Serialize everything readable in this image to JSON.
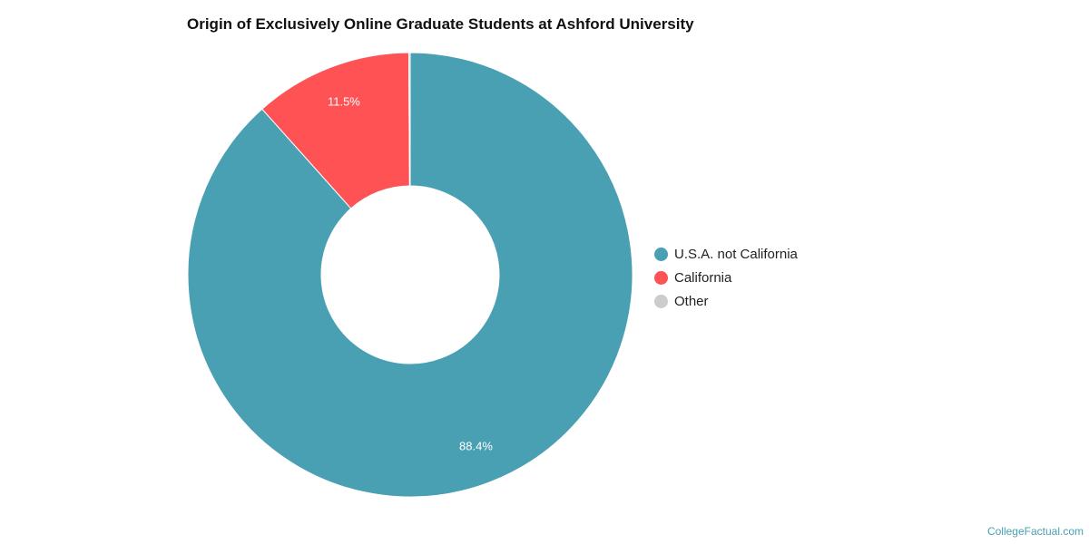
{
  "chart_data": {
    "type": "pie",
    "title": "Origin of Exclusively Online Graduate Students at Ashford University",
    "donut": true,
    "legend_position": "right",
    "series": [
      {
        "name": "U.S.A. not California",
        "value": 88.4,
        "label": "88.4%",
        "color": "#4aa0b3"
      },
      {
        "name": "California",
        "value": 11.5,
        "label": "11.5%",
        "color": "#ff5254"
      },
      {
        "name": "Other",
        "value": 0.1,
        "label": "",
        "color": "#cccccc"
      }
    ]
  },
  "footer": {
    "credit": "CollegeFactual.com"
  }
}
